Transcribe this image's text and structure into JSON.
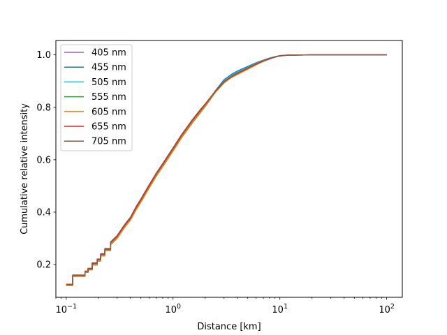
{
  "chart_data": {
    "type": "line",
    "title": "",
    "xlabel": "Distance [km]",
    "ylabel": "Cumulative relative intensity",
    "xscale": "log",
    "xlim": [
      0.08,
      140
    ],
    "ylim": [
      0.075,
      1.055
    ],
    "grid": false,
    "legend_position": "top-left",
    "x_ticks": [
      {
        "value": 0.1,
        "base": "10",
        "exp": "−1"
      },
      {
        "value": 1,
        "base": "10",
        "exp": "0"
      },
      {
        "value": 10,
        "base": "10",
        "exp": "1"
      },
      {
        "value": 100,
        "base": "10",
        "exp": "2"
      }
    ],
    "y_ticks": [
      {
        "value": 0.2,
        "label": "0.2"
      },
      {
        "value": 0.4,
        "label": "0.4"
      },
      {
        "value": 0.6,
        "label": "0.6"
      },
      {
        "value": 0.8,
        "label": "0.8"
      },
      {
        "value": 1.0,
        "label": "1.0"
      }
    ],
    "x": [
      0.1,
      0.11,
      0.115,
      0.14,
      0.15,
      0.16,
      0.175,
      0.195,
      0.21,
      0.23,
      0.26,
      0.3,
      0.35,
      0.4,
      0.45,
      0.5,
      0.6,
      0.7,
      0.8,
      1.0,
      1.2,
      1.5,
      1.8,
      2.0,
      2.5,
      3.0,
      3.5,
      4.0,
      5.0,
      6.0,
      7.0,
      8.0,
      9.0,
      10.0,
      12.0,
      20.0,
      50.0,
      100.0
    ],
    "series": [
      {
        "name": "405 nm",
        "color": "#9467bd",
        "values": [
          0.125,
          0.125,
          0.16,
          0.16,
          0.175,
          0.185,
          0.205,
          0.22,
          0.24,
          0.26,
          0.285,
          0.31,
          0.35,
          0.38,
          0.42,
          0.45,
          0.505,
          0.55,
          0.585,
          0.645,
          0.695,
          0.75,
          0.79,
          0.81,
          0.86,
          0.895,
          0.915,
          0.93,
          0.95,
          0.965,
          0.977,
          0.985,
          0.992,
          0.997,
          0.999,
          1.0,
          1.0,
          1.0
        ]
      },
      {
        "name": "455 nm",
        "color": "#1f77b4",
        "values": [
          0.122,
          0.122,
          0.157,
          0.157,
          0.172,
          0.182,
          0.2,
          0.215,
          0.235,
          0.255,
          0.278,
          0.302,
          0.342,
          0.372,
          0.41,
          0.44,
          0.495,
          0.54,
          0.575,
          0.635,
          0.685,
          0.74,
          0.782,
          0.808,
          0.864,
          0.905,
          0.925,
          0.938,
          0.956,
          0.97,
          0.98,
          0.988,
          0.993,
          0.997,
          0.999,
          1.0,
          1.0,
          1.0
        ]
      },
      {
        "name": "505 nm",
        "color": "#17becf",
        "values": [
          0.122,
          0.122,
          0.157,
          0.157,
          0.172,
          0.182,
          0.2,
          0.215,
          0.235,
          0.255,
          0.278,
          0.302,
          0.343,
          0.373,
          0.411,
          0.441,
          0.496,
          0.541,
          0.576,
          0.636,
          0.686,
          0.741,
          0.782,
          0.806,
          0.861,
          0.9,
          0.92,
          0.934,
          0.953,
          0.968,
          0.979,
          0.987,
          0.993,
          0.997,
          0.999,
          1.0,
          1.0,
          1.0
        ]
      },
      {
        "name": "555 nm",
        "color": "#2ca02c",
        "values": [
          0.12,
          0.12,
          0.155,
          0.155,
          0.17,
          0.18,
          0.198,
          0.213,
          0.233,
          0.253,
          0.275,
          0.3,
          0.34,
          0.37,
          0.408,
          0.438,
          0.493,
          0.538,
          0.573,
          0.633,
          0.683,
          0.738,
          0.779,
          0.803,
          0.858,
          0.893,
          0.913,
          0.928,
          0.948,
          0.964,
          0.976,
          0.985,
          0.992,
          0.996,
          0.999,
          1.0,
          1.0,
          1.0
        ]
      },
      {
        "name": "605 nm",
        "color": "#ff7f0e",
        "values": [
          0.121,
          0.121,
          0.156,
          0.156,
          0.171,
          0.181,
          0.199,
          0.214,
          0.234,
          0.254,
          0.277,
          0.301,
          0.341,
          0.371,
          0.409,
          0.439,
          0.494,
          0.539,
          0.574,
          0.634,
          0.684,
          0.74,
          0.781,
          0.805,
          0.86,
          0.895,
          0.913,
          0.925,
          0.945,
          0.962,
          0.975,
          0.984,
          0.991,
          0.996,
          0.999,
          1.0,
          1.0,
          1.0
        ]
      },
      {
        "name": "655 nm",
        "color": "#d62728",
        "values": [
          0.124,
          0.124,
          0.159,
          0.159,
          0.174,
          0.184,
          0.204,
          0.219,
          0.239,
          0.259,
          0.283,
          0.308,
          0.348,
          0.378,
          0.417,
          0.447,
          0.502,
          0.547,
          0.582,
          0.642,
          0.692,
          0.747,
          0.788,
          0.811,
          0.862,
          0.897,
          0.916,
          0.929,
          0.949,
          0.965,
          0.977,
          0.985,
          0.992,
          0.996,
          0.999,
          1.0,
          1.0,
          1.0
        ]
      },
      {
        "name": "705 nm",
        "color": "#8c564b",
        "values": [
          0.125,
          0.125,
          0.16,
          0.16,
          0.175,
          0.186,
          0.206,
          0.221,
          0.241,
          0.261,
          0.286,
          0.311,
          0.351,
          0.381,
          0.42,
          0.45,
          0.505,
          0.55,
          0.585,
          0.645,
          0.695,
          0.75,
          0.791,
          0.813,
          0.863,
          0.898,
          0.917,
          0.93,
          0.95,
          0.966,
          0.978,
          0.986,
          0.992,
          0.997,
          0.999,
          1.0,
          1.0,
          1.0
        ]
      }
    ]
  }
}
